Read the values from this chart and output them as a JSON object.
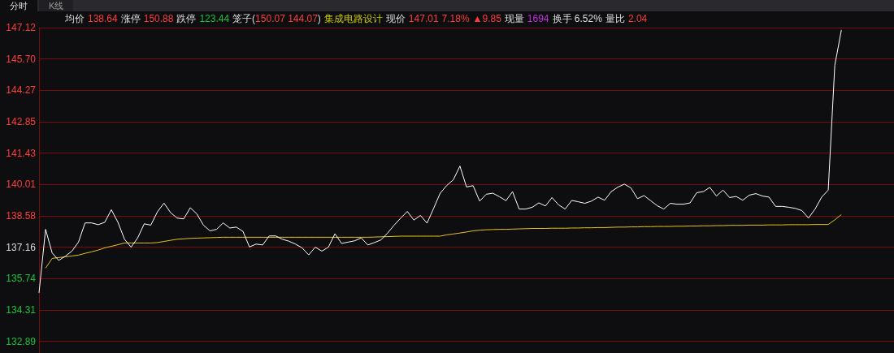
{
  "chart_data": {
    "type": "line",
    "annotations": [
      "分时",
      "K线",
      "均价",
      "138.64",
      "涨停",
      "150.88",
      "跌停",
      "123.44",
      "笼子(",
      "150.07 144.07",
      ")",
      "集成电路设计",
      "现价",
      "147.01",
      "7.18%",
      "▲9.85",
      "现量",
      "1694",
      "换手 6.52%",
      "量比",
      "2.04"
    ],
    "categories": [
      null,
      null,
      null,
      null,
      null,
      null,
      null,
      null,
      null,
      null,
      null,
      null,
      null,
      null,
      null,
      null,
      null,
      null,
      null,
      null,
      null,
      null,
      null,
      null,
      null,
      null,
      null,
      null,
      null,
      null,
      null,
      null,
      null,
      null,
      null,
      null,
      null,
      null,
      null,
      null,
      null,
      null,
      null,
      null,
      null,
      null,
      null,
      null,
      null,
      null,
      null,
      null,
      null,
      null,
      null,
      null,
      null,
      null,
      null,
      null,
      null,
      null,
      null,
      null,
      null,
      null,
      null,
      null,
      null,
      null,
      null,
      null,
      null,
      null,
      null,
      null,
      null,
      null,
      null,
      null,
      null,
      null,
      null,
      null,
      null,
      null,
      null,
      null,
      null,
      null,
      null,
      null,
      null,
      null,
      null,
      null,
      null,
      null,
      null,
      null,
      null,
      null,
      null,
      null,
      null,
      null,
      null,
      null,
      null,
      null,
      null,
      null,
      null,
      null,
      null,
      null,
      null,
      null,
      null,
      null,
      null,
      null,
      null
    ],
    "series": [
      {
        "color": "#ffffff",
        "values": [
          135.09,
          137.97,
          136.9,
          136.56,
          136.75,
          136.98,
          137.39,
          138.26,
          138.26,
          138.18,
          138.29,
          138.86,
          138.29,
          137.52,
          137.16,
          137.58,
          138.22,
          138.16,
          138.76,
          139.16,
          138.73,
          138.48,
          138.44,
          138.95,
          138.67,
          138.16,
          137.9,
          137.97,
          138.26,
          138.03,
          138.07,
          137.88,
          137.17,
          137.3,
          137.26,
          137.67,
          137.67,
          137.52,
          137.43,
          137.3,
          137.13,
          136.81,
          137.16,
          136.98,
          137.16,
          137.77,
          137.33,
          137.39,
          137.45,
          137.58,
          137.26,
          137.37,
          137.49,
          137.8,
          138.16,
          138.48,
          138.78,
          138.39,
          138.6,
          138.25,
          138.92,
          139.61,
          139.96,
          140.22,
          140.84,
          139.89,
          139.95,
          139.25,
          139.56,
          139.61,
          139.45,
          139.27,
          139.68,
          138.89,
          138.89,
          138.97,
          139.17,
          139.03,
          139.41,
          139.08,
          138.89,
          139.28,
          139.22,
          139.15,
          139.25,
          139.43,
          139.29,
          139.68,
          139.88,
          140.02,
          139.85,
          139.36,
          139.5,
          139.27,
          139.04,
          138.89,
          139.15,
          139.11,
          139.11,
          139.17,
          139.63,
          139.68,
          139.87,
          139.48,
          139.75,
          139.41,
          139.46,
          139.29,
          139.52,
          139.59,
          139.48,
          139.43,
          139.01,
          139.01,
          138.97,
          138.92,
          138.82,
          138.48,
          138.89,
          139.43,
          139.75,
          145.41,
          147.01
        ]
      },
      {
        "color": "#e8c317",
        "values": [
          null,
          136.21,
          136.65,
          136.69,
          136.72,
          136.76,
          136.8,
          136.88,
          136.95,
          137.03,
          137.13,
          137.2,
          137.27,
          137.35,
          137.35,
          137.35,
          137.35,
          137.35,
          137.37,
          137.42,
          137.47,
          137.52,
          137.54,
          137.56,
          137.57,
          137.58,
          137.59,
          137.6,
          137.61,
          137.61,
          137.61,
          137.61,
          137.61,
          137.61,
          137.61,
          137.61,
          137.61,
          137.61,
          137.61,
          137.61,
          137.61,
          137.61,
          137.61,
          137.61,
          137.61,
          137.61,
          137.61,
          137.61,
          137.61,
          137.61,
          137.61,
          137.62,
          137.63,
          137.64,
          137.65,
          137.66,
          137.66,
          137.66,
          137.66,
          137.66,
          137.66,
          137.66,
          137.72,
          137.76,
          137.8,
          137.85,
          137.9,
          137.93,
          137.95,
          137.96,
          137.97,
          137.97,
          137.98,
          137.99,
          138.0,
          138.01,
          138.01,
          138.01,
          138.02,
          138.02,
          138.02,
          138.03,
          138.03,
          138.04,
          138.04,
          138.05,
          138.05,
          138.06,
          138.07,
          138.07,
          138.08,
          138.08,
          138.09,
          138.09,
          138.1,
          138.1,
          138.1,
          138.11,
          138.11,
          138.12,
          138.12,
          138.13,
          138.13,
          138.14,
          138.14,
          138.15,
          138.15,
          138.15,
          138.16,
          138.16,
          138.16,
          138.17,
          138.17,
          138.17,
          138.18,
          138.18,
          138.18,
          138.18,
          138.19,
          138.19,
          138.19,
          138.4,
          138.64
        ]
      }
    ],
    "ylim": [
      132.36,
      147.12
    ],
    "yticks": [
      132.89,
      134.31,
      135.74,
      137.16,
      138.58,
      140.01,
      141.43,
      142.85,
      144.27,
      {
        "value": 145.7,
        "label": "145.70"
      },
      147.12
    ],
    "grid": "y",
    "tick_labels": "y",
    "line_style": "solid"
  }
}
